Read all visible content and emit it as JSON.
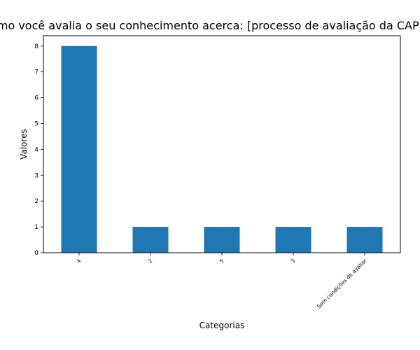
{
  "chart_data": {
    "type": "bar",
    "title": "Como você avalia o seu conhecimento acerca: [processo de avaliação da CAPES]",
    "xlabel": "Categorias",
    "ylabel": "Valores",
    "categories": [
      "4",
      "2",
      "5",
      "3",
      "Sem condições de avaliar"
    ],
    "values": [
      8,
      1,
      1,
      1,
      1
    ],
    "ylim": [
      0,
      8.4
    ],
    "yticks": [
      0,
      1,
      2,
      3,
      4,
      5,
      6,
      7,
      8
    ],
    "grid": false,
    "bar_color": "#1f77b4"
  }
}
